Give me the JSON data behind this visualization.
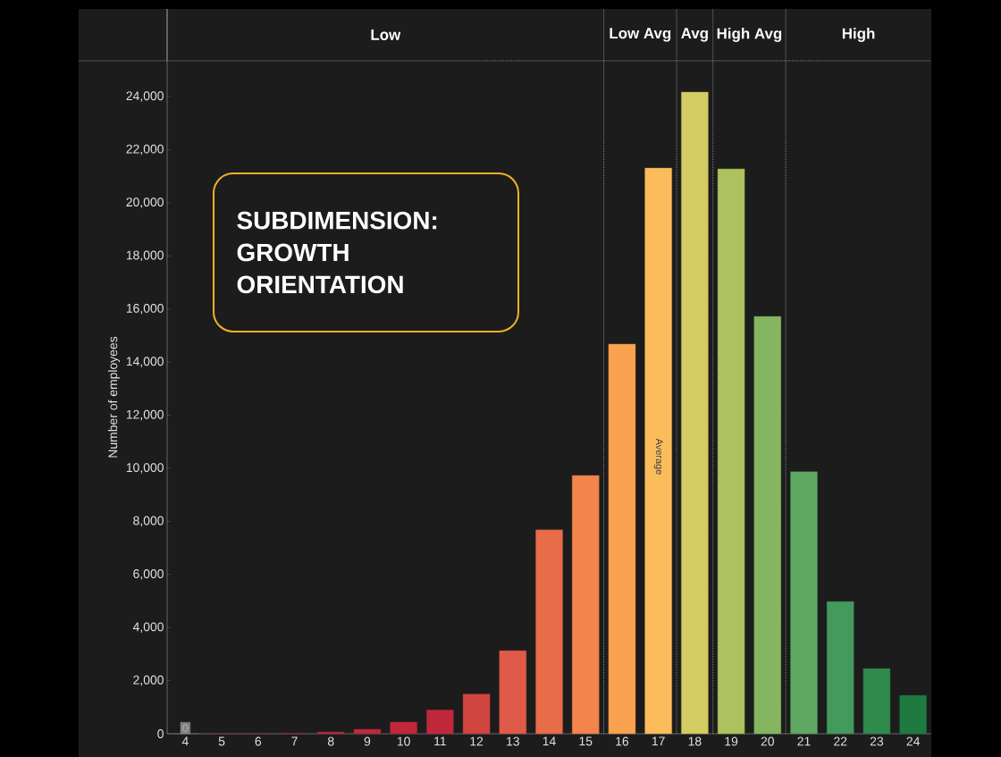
{
  "chart_data": {
    "type": "bar",
    "title": "SUBDIMENSION: GROWTH ORIENTATION",
    "ylabel": "Number of employees",
    "x": [
      4,
      5,
      6,
      7,
      8,
      9,
      10,
      11,
      12,
      13,
      14,
      15,
      16,
      17,
      18,
      19,
      20,
      21,
      22,
      23,
      24
    ],
    "values": [
      0,
      0,
      0,
      10,
      70,
      170,
      440,
      900,
      1500,
      3130,
      7680,
      9730,
      14680,
      21310,
      24170,
      21280,
      15720,
      9870,
      4980,
      2460,
      1450
    ],
    "value_labels": [
      "0",
      null,
      null,
      null,
      null,
      null,
      null,
      null,
      null,
      null,
      null,
      null,
      null,
      null,
      null,
      null,
      null,
      null,
      null,
      null,
      null
    ],
    "colors": [
      "#8c8c8c",
      "#c0283c",
      "#c0283c",
      "#c0283c",
      "#c0283c",
      "#c0283c",
      "#c0283c",
      "#c0283c",
      "#d0453f",
      "#e05a4a",
      "#e86c48",
      "#f2844c",
      "#f9a24f",
      "#fbbd5b",
      "#d4cb62",
      "#adc25e",
      "#84b662",
      "#5fa864",
      "#449a5c",
      "#2f8a4c",
      "#1e7a3e"
    ],
    "xlim": [
      3.5,
      24.5
    ],
    "ylim": [
      0,
      25350
    ],
    "xticks": [
      4,
      5,
      6,
      7,
      8,
      9,
      10,
      11,
      12,
      13,
      14,
      15,
      16,
      17,
      18,
      19,
      20,
      21,
      22,
      23,
      24
    ],
    "yticks": [
      0,
      {
        "value": 2000,
        "label": "2,000"
      },
      {
        "value": 4000,
        "label": "4,000"
      },
      {
        "value": 6000,
        "label": "6,000"
      },
      {
        "value": 8000,
        "label": "8,000"
      },
      {
        "value": 10000,
        "label": "10,000"
      },
      {
        "value": 12000,
        "label": "12,000"
      },
      {
        "value": 14000,
        "label": "14,000"
      },
      {
        "value": 16000,
        "label": "16,000"
      },
      {
        "value": 18000,
        "label": "18,000"
      },
      {
        "value": 20000,
        "label": "20,000"
      },
      {
        "value": 22000,
        "label": "22,000"
      },
      {
        "value": 24000,
        "label": "24,000"
      }
    ],
    "ref_lines": [
      {
        "axis": "x",
        "value": 15.5,
        "line_style": "dotted"
      },
      {
        "axis": "x",
        "value": 17.5,
        "line_style": "dotted"
      },
      {
        "axis": "x",
        "value": 18.5,
        "line_style": "dotted"
      },
      {
        "axis": "x",
        "value": 20.5,
        "line_style": "dotted"
      }
    ],
    "annotations": [
      "Low",
      "Low Avg",
      "Avg",
      "High Avg",
      "High",
      "Average"
    ]
  }
}
